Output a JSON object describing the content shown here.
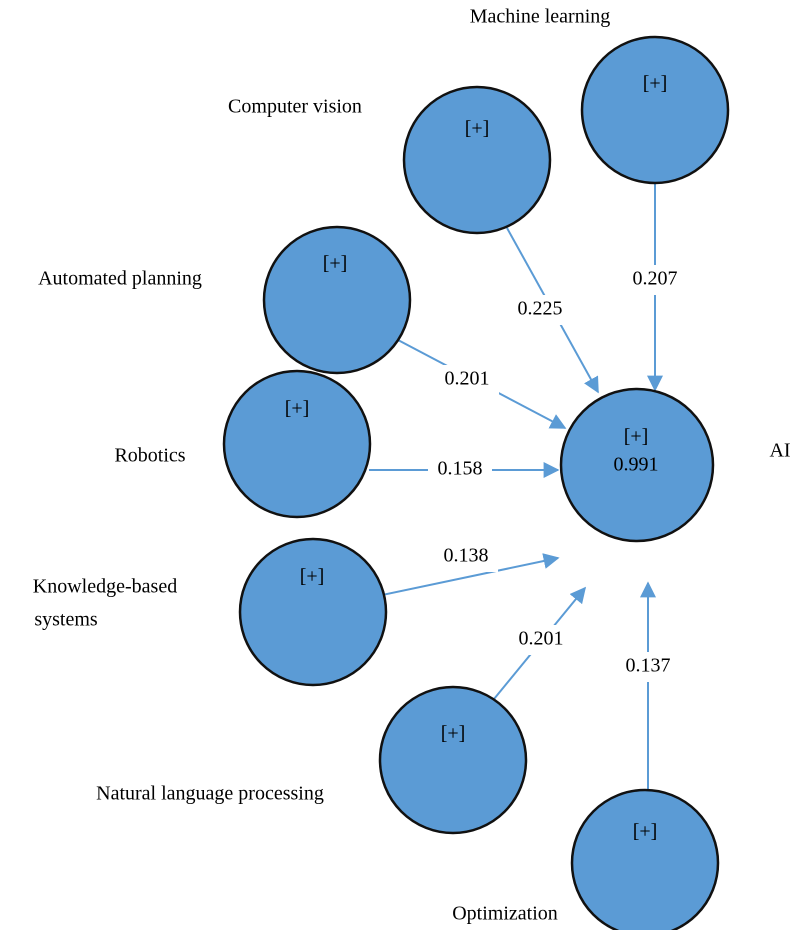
{
  "nodes": [
    {
      "label": "Machine learning",
      "marker": "[+]"
    },
    {
      "label": "Computer vision",
      "marker": "[+]"
    },
    {
      "label": "Automated planning",
      "marker": "[+]"
    },
    {
      "label": "Robotics",
      "marker": "[+]"
    },
    {
      "label": [
        "Knowledge-based",
        "systems"
      ],
      "marker": "[+]"
    },
    {
      "label": "Natural language processing",
      "marker": "[+]"
    },
    {
      "label": "Optimization",
      "marker": "[+]"
    }
  ],
  "target": {
    "label": "AI",
    "marker": "[+]",
    "r_squared": 0.991
  },
  "edges": [
    {
      "from": 0,
      "coefficient": 0.207
    },
    {
      "from": 1,
      "coefficient": 0.225
    },
    {
      "from": 2,
      "coefficient": 0.201
    },
    {
      "from": 3,
      "coefficient": 0.158
    },
    {
      "from": 4,
      "coefficient": 0.138
    },
    {
      "from": 5,
      "coefficient": 0.201
    },
    {
      "from": 6,
      "coefficient": 0.137
    }
  ]
}
